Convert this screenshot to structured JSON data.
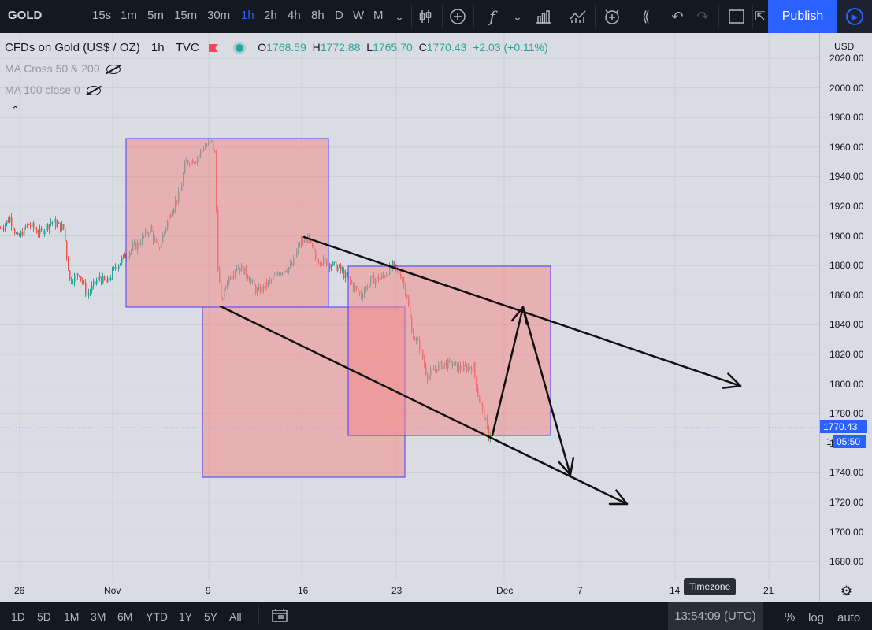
{
  "toolbar": {
    "symbol": "GOLD",
    "intervals": [
      "15s",
      "1m",
      "5m",
      "15m",
      "30m",
      "1h",
      "2h",
      "4h",
      "8h",
      "D",
      "W",
      "M"
    ],
    "active_interval": "1h",
    "publish_label": "Publish"
  },
  "legend": {
    "title": "CFDs on Gold (US$ / OZ)",
    "interval": "1h",
    "source": "TVC",
    "open_label": "O",
    "open": "1768.59",
    "high_label": "H",
    "high": "1772.88",
    "low_label": "L",
    "low": "1765.70",
    "close_label": "C",
    "close": "1770.43",
    "change": "+2.03 (+0.11%)"
  },
  "indicators": [
    {
      "label": "MA Cross 50 & 200"
    },
    {
      "label": "MA 100 close 0"
    }
  ],
  "price_axis": {
    "currency": "USD",
    "ticks": [
      "2020.00",
      "2000.00",
      "1980.00",
      "1960.00",
      "1940.00",
      "1920.00",
      "1900.00",
      "1880.00",
      "1860.00",
      "1840.00",
      "1820.00",
      "1800.00",
      "1780.00",
      "1760.00",
      "1740.00",
      "1720.00",
      "1700.00",
      "1680.00"
    ],
    "last_price": "1770.43",
    "countdown": "05:50",
    "countdown_prefix": "1"
  },
  "time_axis": {
    "ticks": [
      "26",
      "Nov",
      "9",
      "16",
      "23",
      "Dec",
      "7",
      "14",
      "21"
    ]
  },
  "bottom": {
    "ranges": [
      "1D",
      "5D",
      "1M",
      "3M",
      "6M",
      "YTD",
      "1Y",
      "5Y",
      "All"
    ],
    "time": "13:54:09 (UTC)",
    "timezone_tooltip": "Timezone",
    "percent": "%",
    "log": "log",
    "auto": "auto"
  },
  "colors": {
    "up": "#26a69a",
    "down": "#ef5350",
    "box_fill": "#f28b8b",
    "box_border": "#3f3fff",
    "accent": "#2962ff"
  }
}
